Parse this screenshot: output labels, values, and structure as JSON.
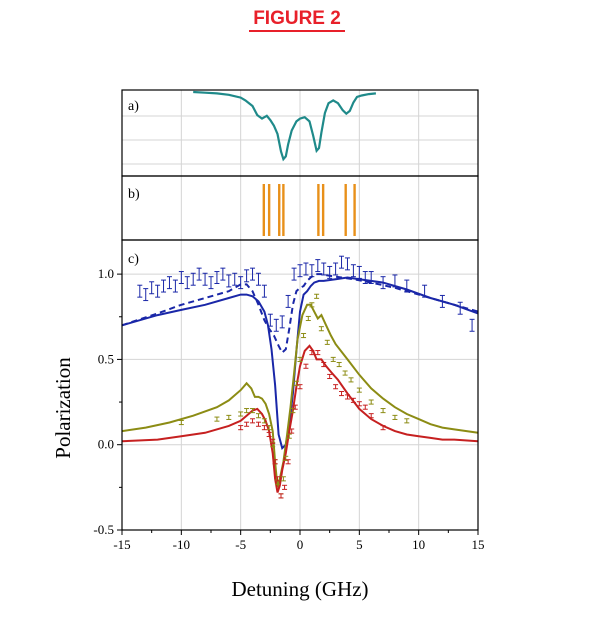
{
  "figure_title": "FIGURE 2",
  "chart_data": [
    {
      "panel": "a)",
      "type": "line",
      "xlim": [
        -15,
        15
      ],
      "grid": true,
      "series": [
        {
          "color": "#1f8a8a",
          "x": [
            -9,
            -8,
            -7,
            -6,
            -5,
            -4.6,
            -4,
            -3.6,
            -3.2,
            -3.0,
            -2.8,
            -2.5,
            -2.2,
            -1.9,
            -1.6,
            -1.4,
            -1.2,
            -1.0,
            -0.7,
            -0.3,
            0,
            0.4,
            0.8,
            1.1,
            1.4,
            1.6,
            1.8,
            2.1,
            2.4,
            2.8,
            3.2,
            3.6,
            3.9,
            4.2,
            4.5,
            4.8,
            5.2,
            5.8,
            6.4
          ],
          "y": [
            0.0,
            -0.01,
            -0.02,
            -0.04,
            -0.08,
            -0.12,
            -0.2,
            -0.33,
            -0.38,
            -0.36,
            -0.34,
            -0.4,
            -0.48,
            -0.6,
            -0.85,
            -0.96,
            -0.92,
            -0.75,
            -0.55,
            -0.42,
            -0.38,
            -0.36,
            -0.42,
            -0.62,
            -0.84,
            -0.8,
            -0.58,
            -0.3,
            -0.16,
            -0.12,
            -0.16,
            -0.26,
            -0.31,
            -0.27,
            -0.15,
            -0.07,
            -0.05,
            -0.03,
            -0.02
          ]
        }
      ]
    },
    {
      "panel": "b)",
      "type": "bar",
      "xlim": [
        -15,
        15
      ],
      "grid": true,
      "series": [
        {
          "color": "#e8901a",
          "x": [
            -3.05,
            -2.6,
            -1.75,
            -1.4,
            1.55,
            1.95,
            3.85,
            4.6
          ]
        }
      ]
    },
    {
      "panel": "c)",
      "type": "line",
      "xlim": [
        -15,
        15
      ],
      "ylim": [
        -0.5,
        1.2
      ],
      "xticks": [
        "-15",
        "-10",
        "-5",
        "0",
        "5",
        "10",
        "15"
      ],
      "yticks": [
        "-0.5",
        "0.0",
        "0.5",
        "1.0"
      ],
      "xlabel": "Detuning (GHz)",
      "ylabel": "Polarization",
      "grid": true,
      "series": [
        {
          "style": "solid",
          "color": "#1a27a8",
          "x": [
            -15,
            -12,
            -10,
            -8,
            -6,
            -5,
            -4.5,
            -4,
            -3.5,
            -3,
            -2.7,
            -2.4,
            -2.1,
            -1.8,
            -1.5,
            -1.2,
            -0.9,
            -0.6,
            -0.3,
            0,
            0.3,
            0.6,
            0.9,
            1.2,
            1.6,
            2,
            3,
            4,
            5,
            7,
            9,
            11,
            13,
            15
          ],
          "y": [
            0.7,
            0.76,
            0.79,
            0.82,
            0.86,
            0.88,
            0.88,
            0.87,
            0.84,
            0.78,
            0.7,
            0.56,
            0.35,
            0.06,
            -0.02,
            0.0,
            0.12,
            0.3,
            0.55,
            0.78,
            0.88,
            0.9,
            0.93,
            0.95,
            0.96,
            0.96,
            0.97,
            0.98,
            0.97,
            0.95,
            0.91,
            0.86,
            0.82,
            0.77
          ]
        },
        {
          "style": "dashed",
          "color": "#1a27a8",
          "x": [
            -15,
            -12,
            -10,
            -8,
            -6,
            -5,
            -4.5,
            -4,
            -3.5,
            -3,
            -2.6,
            -2.2,
            -1.8,
            -1.5,
            -1.2,
            -0.9,
            -0.6,
            -0.3,
            0,
            0.3,
            0.6,
            0.9,
            1.3,
            1.8,
            2.5,
            3.5,
            4.5,
            6,
            8,
            10,
            12,
            14,
            15
          ],
          "y": [
            0.7,
            0.77,
            0.82,
            0.86,
            0.9,
            0.94,
            0.94,
            0.9,
            0.82,
            0.73,
            0.68,
            0.64,
            0.58,
            0.54,
            0.56,
            0.68,
            0.82,
            0.9,
            0.92,
            0.93,
            0.96,
            0.98,
            1.0,
            1.0,
            0.99,
            0.98,
            0.97,
            0.95,
            0.92,
            0.88,
            0.84,
            0.8,
            0.78
          ]
        },
        {
          "style": "solid",
          "color": "#8c8c14",
          "x": [
            -15,
            -13,
            -11,
            -9,
            -7,
            -6,
            -5,
            -4.5,
            -4.1,
            -3.8,
            -3.5,
            -3.2,
            -2.9,
            -2.6,
            -2.3,
            -2.1,
            -1.9,
            -1.7,
            -1.4,
            -1.1,
            -0.8,
            -0.5,
            -0.2,
            0.2,
            0.6,
            0.9,
            1.2,
            1.5,
            1.8,
            2.2,
            2.6,
            3,
            4,
            5,
            6,
            7,
            8,
            9,
            10,
            11,
            12,
            13,
            15
          ],
          "y": [
            0.08,
            0.1,
            0.13,
            0.17,
            0.22,
            0.26,
            0.32,
            0.36,
            0.33,
            0.28,
            0.28,
            0.27,
            0.24,
            0.18,
            0.08,
            -0.1,
            -0.25,
            -0.2,
            -0.1,
            0.05,
            0.22,
            0.42,
            0.62,
            0.76,
            0.82,
            0.82,
            0.78,
            0.74,
            0.76,
            0.7,
            0.64,
            0.59,
            0.5,
            0.41,
            0.33,
            0.27,
            0.22,
            0.18,
            0.15,
            0.12,
            0.1,
            0.09,
            0.07
          ]
        },
        {
          "style": "solid",
          "color": "#c62020",
          "x": [
            -15,
            -12,
            -10,
            -8,
            -6,
            -5,
            -4.5,
            -4,
            -3.6,
            -3.2,
            -2.9,
            -2.6,
            -2.3,
            -2.1,
            -1.9,
            -1.7,
            -1.5,
            -1.2,
            -0.9,
            -0.6,
            -0.3,
            0,
            0.4,
            0.8,
            1.1,
            1.4,
            1.8,
            2.2,
            2.7,
            3.2,
            4,
            5,
            6,
            7,
            8,
            9,
            10,
            11,
            12,
            13,
            15
          ],
          "y": [
            0.02,
            0.03,
            0.05,
            0.07,
            0.11,
            0.14,
            0.17,
            0.2,
            0.21,
            0.18,
            0.14,
            0.08,
            -0.05,
            -0.2,
            -0.28,
            -0.24,
            -0.15,
            -0.05,
            0.08,
            0.2,
            0.34,
            0.46,
            0.55,
            0.58,
            0.55,
            0.5,
            0.5,
            0.46,
            0.42,
            0.38,
            0.3,
            0.21,
            0.15,
            0.11,
            0.08,
            0.06,
            0.05,
            0.04,
            0.03,
            0.03,
            0.02
          ]
        },
        {
          "style": "errorbar",
          "color": "#1a27a8",
          "x": [
            -13.5,
            -13,
            -12.5,
            -12,
            -11.5,
            -11,
            -10.5,
            -10,
            -9.5,
            -9,
            -8.5,
            -8,
            -7.5,
            -7,
            -6.5,
            -6,
            -5.5,
            -5,
            -4.5,
            -4,
            -3.5,
            -3,
            -2.5,
            -2,
            -1.5,
            -1,
            -0.5,
            0,
            0.5,
            1,
            1.5,
            2,
            2.5,
            3,
            3.5,
            4,
            4.5,
            5,
            5.5,
            6,
            7,
            8,
            9,
            10.5,
            12,
            13.5,
            14.5
          ],
          "y": [
            0.9,
            0.88,
            0.92,
            0.9,
            0.93,
            0.95,
            0.93,
            0.98,
            0.95,
            0.97,
            1.0,
            0.97,
            0.95,
            0.98,
            1.0,
            0.96,
            0.97,
            0.95,
            0.99,
            1.0,
            0.97,
            0.9,
            0.73,
            0.7,
            0.72,
            0.84,
            1.0,
            1.02,
            1.03,
            1.02,
            1.05,
            1.03,
            1.01,
            1.03,
            1.07,
            1.06,
            1.02,
            1.01,
            0.98,
            0.98,
            0.95,
            0.96,
            0.93,
            0.9,
            0.84,
            0.8,
            0.7
          ],
          "err": 0.035
        },
        {
          "style": "errorbar",
          "color": "#8c8c14",
          "x": [
            -10,
            -7,
            -6,
            -5,
            -4.5,
            -4,
            -3.5,
            -3,
            -2.6,
            -2.3,
            -2.1,
            -1.9,
            -1.6,
            -1.4,
            -1.2,
            -0.9,
            -0.6,
            -0.3,
            0,
            0.3,
            0.7,
            1,
            1.4,
            1.8,
            2.3,
            2.8,
            3.3,
            3.8,
            4.3,
            5,
            6,
            7,
            8,
            9
          ],
          "y": [
            0.13,
            0.15,
            0.16,
            0.18,
            0.2,
            0.2,
            0.17,
            0.14,
            0.1,
            0.0,
            -0.1,
            -0.22,
            -0.3,
            -0.2,
            -0.08,
            0.05,
            0.2,
            0.36,
            0.5,
            0.64,
            0.74,
            0.82,
            0.87,
            0.68,
            0.6,
            0.5,
            0.47,
            0.42,
            0.38,
            0.32,
            0.25,
            0.2,
            0.16,
            0.14
          ],
          "err": 0.012
        },
        {
          "style": "errorbar",
          "color": "#c62020",
          "x": [
            -5,
            -4.5,
            -4,
            -3.5,
            -3,
            -2.6,
            -2.3,
            -2.1,
            -1.9,
            -1.6,
            -1.3,
            -1,
            -0.7,
            -0.4,
            0,
            0.5,
            1,
            1.5,
            2,
            2.5,
            3,
            3.5,
            4,
            4.5,
            5,
            5.5,
            6,
            7
          ],
          "y": [
            0.1,
            0.12,
            0.14,
            0.12,
            0.1,
            0.06,
            0.02,
            -0.1,
            -0.2,
            -0.3,
            -0.25,
            -0.1,
            0.08,
            0.22,
            0.34,
            0.46,
            0.54,
            0.54,
            0.47,
            0.4,
            0.34,
            0.3,
            0.28,
            0.26,
            0.24,
            0.22,
            0.17,
            0.1
          ],
          "err": 0.012
        }
      ]
    }
  ]
}
